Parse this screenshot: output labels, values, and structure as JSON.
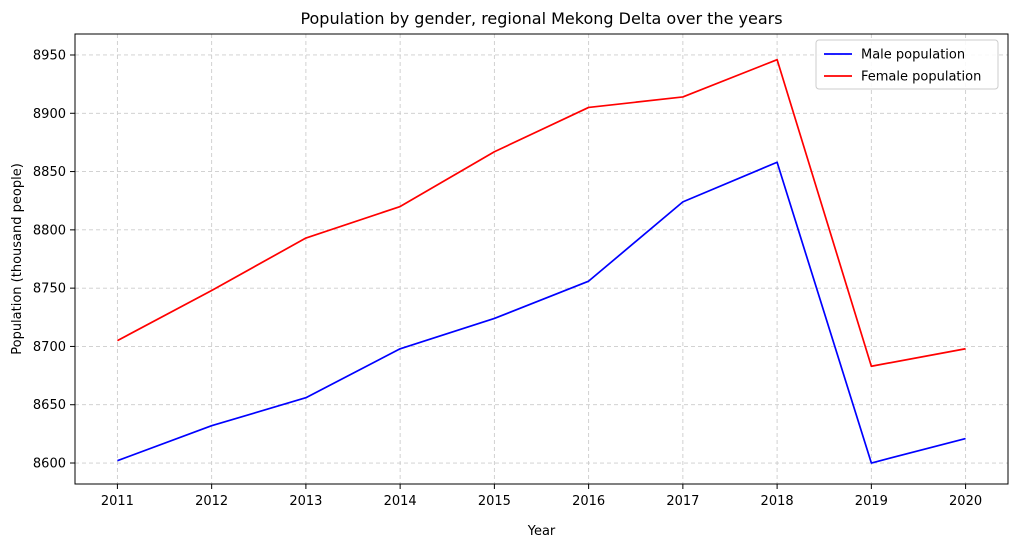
{
  "chart_data": {
    "type": "line",
    "title": "Population by gender, regional Mekong Delta over the years",
    "xlabel": "Year",
    "ylabel": "Population (thousand people)",
    "x": [
      2011,
      2012,
      2013,
      2014,
      2015,
      2016,
      2017,
      2018,
      2019,
      2020
    ],
    "series": [
      {
        "name": "Male population",
        "color": "#0000ff",
        "values": [
          8602,
          8632,
          8656,
          8698,
          8724,
          8756,
          8824,
          8858,
          8600,
          8621
        ]
      },
      {
        "name": "Female population",
        "color": "#ff0000",
        "values": [
          8705,
          8748,
          8793,
          8820,
          8867,
          8905,
          8914,
          8946,
          8683,
          8698
        ]
      }
    ],
    "xlim": [
      2010.55,
      2020.45
    ],
    "ylim": [
      8582,
      8968
    ],
    "yticks": [
      8600,
      8650,
      8700,
      8750,
      8800,
      8850,
      8900,
      8950
    ],
    "grid": true,
    "legend_position": "top-right"
  }
}
